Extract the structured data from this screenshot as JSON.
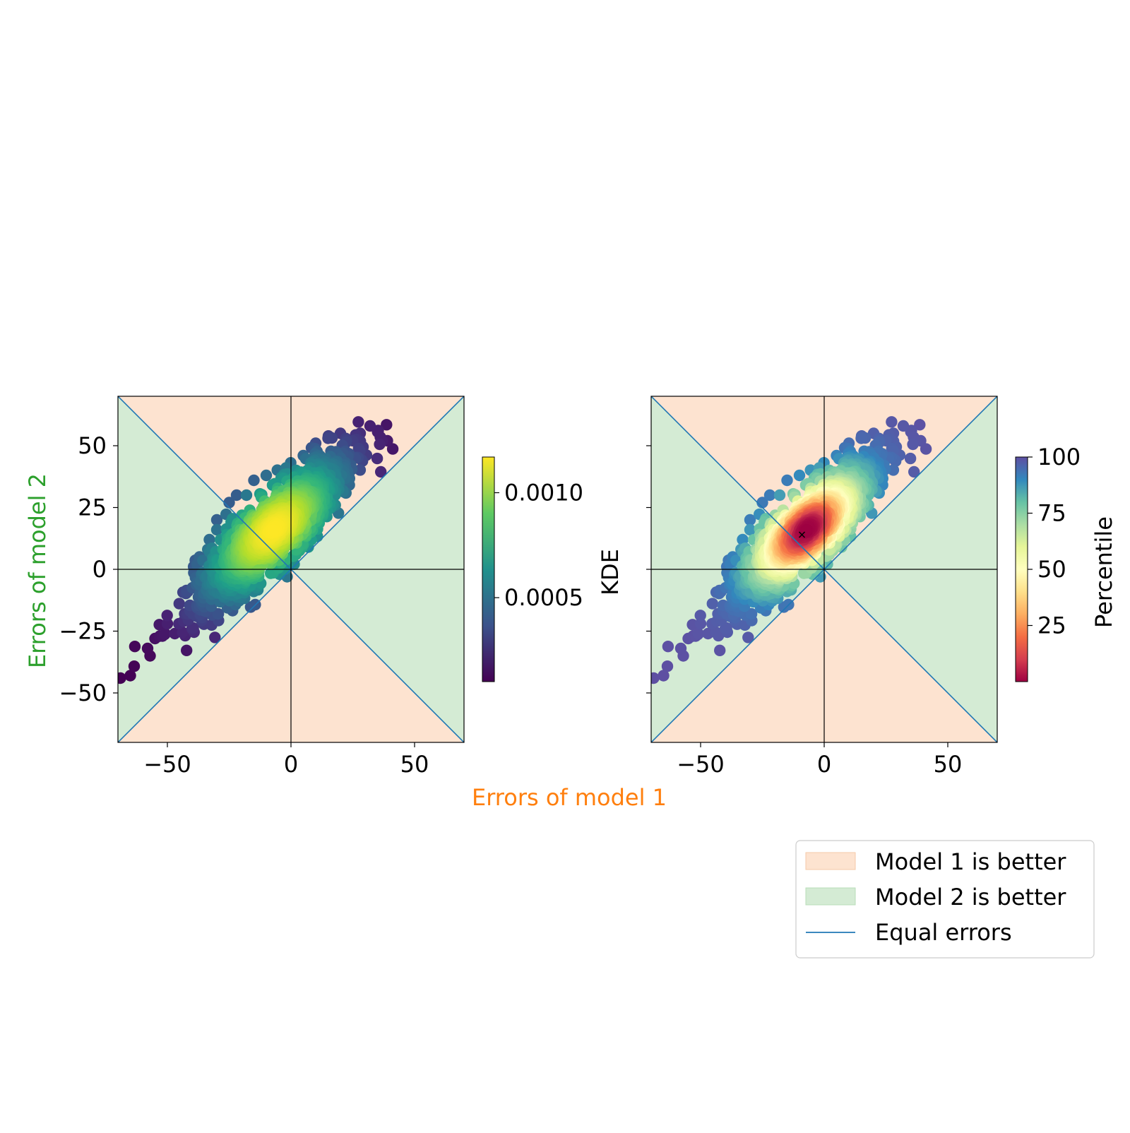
{
  "figure": {
    "xlabel": "Errors of model 1",
    "ylabel": "Errors of model 2",
    "xlabel_color": "#ff7f0e",
    "ylabel_color": "#2ca02c"
  },
  "legend": {
    "placement": "bottom-right",
    "items": [
      {
        "label": "Model 1 is better",
        "kind": "patch",
        "color": "#fde3d0"
      },
      {
        "label": "Model 2 is better",
        "kind": "patch",
        "color": "#d4ebd4"
      },
      {
        "label": "Equal errors",
        "kind": "line",
        "color": "#1f77b4"
      }
    ]
  },
  "chart_data": [
    {
      "type": "scatter",
      "panel": "left",
      "xlim": [
        -70,
        70
      ],
      "ylim": [
        -70,
        70
      ],
      "xticks": [
        "−50",
        "0",
        "50"
      ],
      "xtick_values": [
        -50,
        0,
        50
      ],
      "yticks": [
        "50",
        "25",
        "0",
        "−25",
        "−50"
      ],
      "ytick_values": [
        50,
        25,
        0,
        -25,
        -50
      ],
      "colormap": "viridis",
      "colorbar": {
        "label": "KDE",
        "min": 0.0001,
        "max": 0.00117,
        "ticks": [
          "0.0010",
          "0.0005"
        ],
        "tick_values": [
          0.001,
          0.0005
        ]
      },
      "regions": {
        "model1_better_color": "#fde3d0",
        "model2_better_color": "#d4ebd4",
        "equal_line_color": "#1f77b4"
      },
      "cloud": {
        "center": [
          -7,
          16
        ],
        "spread_along": 21,
        "spread_across": 5.5,
        "angle_deg": 45,
        "n_points": 1400
      },
      "outliers": [
        [
          -69,
          -44
        ],
        [
          -65,
          -43
        ],
        [
          -58,
          -32
        ],
        [
          -57,
          -35
        ],
        [
          -55,
          -28
        ],
        [
          -52,
          -27
        ],
        [
          -50,
          -22
        ],
        [
          -47,
          -26
        ],
        [
          -43,
          -18
        ],
        [
          -40,
          -24
        ],
        [
          -38,
          2
        ],
        [
          -37,
          5
        ],
        [
          -33,
          12
        ],
        [
          -30,
          20
        ],
        [
          -30,
          16
        ],
        [
          -25,
          27
        ],
        [
          -22,
          30
        ],
        [
          -18,
          30
        ],
        [
          -15,
          36
        ],
        [
          -10,
          38
        ],
        [
          -2,
          41
        ],
        [
          5,
          46
        ],
        [
          10,
          51
        ],
        [
          15,
          53
        ],
        [
          20,
          55
        ],
        [
          25,
          52
        ],
        [
          28,
          55
        ],
        [
          32,
          58
        ],
        [
          37,
          52
        ],
        [
          39,
          52
        ],
        [
          26,
          45
        ],
        [
          18,
          40
        ],
        [
          15,
          32
        ],
        [
          12,
          28
        ],
        [
          8,
          15
        ],
        [
          5,
          10
        ],
        [
          2,
          6
        ],
        [
          7,
          9
        ]
      ]
    },
    {
      "type": "scatter",
      "panel": "right",
      "xlim": [
        -70,
        70
      ],
      "ylim": [
        -70,
        70
      ],
      "xticks": [
        "−50",
        "0",
        "50"
      ],
      "xtick_values": [
        -50,
        0,
        50
      ],
      "colormap": "Spectral",
      "colorbar": {
        "label": "Percentile",
        "min": 0,
        "max": 100,
        "ticks": [
          "100",
          "75",
          "50",
          "25"
        ],
        "tick_values": [
          100,
          75,
          50,
          25
        ]
      },
      "regions": {
        "model1_better_color": "#fde3d0",
        "model2_better_color": "#d4ebd4",
        "equal_line_color": "#1f77b4"
      },
      "median_marker": [
        -9,
        14
      ],
      "same_points_as": "left"
    }
  ]
}
